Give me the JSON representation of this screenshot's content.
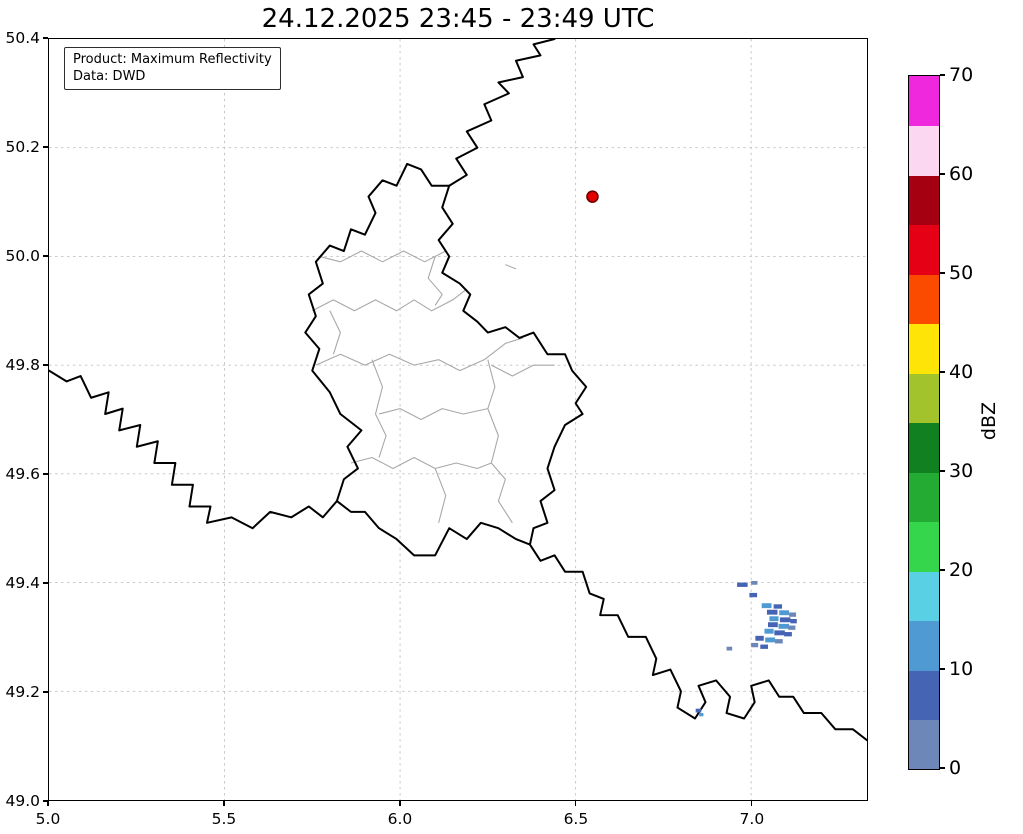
{
  "title": "24.12.2025 23:45 - 23:49 UTC",
  "info_box": {
    "product": "Product: Maximum Reflectivity",
    "source": "Data: DWD"
  },
  "axes": {
    "xlim": [
      5.0,
      7.33
    ],
    "ylim": [
      49.0,
      50.4
    ],
    "x_ticks": [
      {
        "value": 5.0,
        "label": "5.0"
      },
      {
        "value": 5.5,
        "label": "5.5"
      },
      {
        "value": 6.0,
        "label": "6.0"
      },
      {
        "value": 6.5,
        "label": "6.5"
      },
      {
        "value": 7.0,
        "label": "7.0"
      }
    ],
    "y_ticks": [
      {
        "value": 49.0,
        "label": "49.0"
      },
      {
        "value": 49.2,
        "label": "49.2"
      },
      {
        "value": 49.4,
        "label": "49.4"
      },
      {
        "value": 49.6,
        "label": "49.6"
      },
      {
        "value": 49.8,
        "label": "49.8"
      },
      {
        "value": 50.0,
        "label": "50.0"
      },
      {
        "value": 50.2,
        "label": "50.2"
      },
      {
        "value": 50.4,
        "label": "50.4"
      }
    ]
  },
  "colorbar": {
    "label": "dBZ",
    "min": 0,
    "max": 70,
    "ticks": [
      {
        "value": 0,
        "label": "0"
      },
      {
        "value": 10,
        "label": "10"
      },
      {
        "value": 20,
        "label": "20"
      },
      {
        "value": 30,
        "label": "30"
      },
      {
        "value": 40,
        "label": "40"
      },
      {
        "value": 50,
        "label": "50"
      },
      {
        "value": 60,
        "label": "60"
      },
      {
        "value": 70,
        "label": "70"
      }
    ],
    "segments": [
      {
        "from": 0,
        "to": 5,
        "color": "#6d87b8"
      },
      {
        "from": 5,
        "to": 10,
        "color": "#4565b4"
      },
      {
        "from": 10,
        "to": 15,
        "color": "#4f9ad2"
      },
      {
        "from": 15,
        "to": 20,
        "color": "#59d0e4"
      },
      {
        "from": 20,
        "to": 25,
        "color": "#35d54c"
      },
      {
        "from": 25,
        "to": 30,
        "color": "#23ab33"
      },
      {
        "from": 30,
        "to": 35,
        "color": "#118020"
      },
      {
        "from": 35,
        "to": 40,
        "color": "#a3c32c"
      },
      {
        "from": 40,
        "to": 45,
        "color": "#ffe408"
      },
      {
        "from": 45,
        "to": 50,
        "color": "#fb4b00"
      },
      {
        "from": 50,
        "to": 55,
        "color": "#e60015"
      },
      {
        "from": 55,
        "to": 60,
        "color": "#a50012"
      },
      {
        "from": 60,
        "to": 65,
        "color": "#fbd7f2"
      },
      {
        "from": 65,
        "to": 70,
        "color": "#ef28dd"
      }
    ]
  },
  "style": {
    "grid_color": "#c2c2c2",
    "country_border_color": "#000000",
    "admin_border_color": "#a8a8a8",
    "frame_color": "#000000"
  },
  "map": {
    "radar_marker": {
      "lon": 6.548,
      "lat": 50.11,
      "color": "#e50000",
      "edge_color": "#6b0000"
    },
    "country_borders": [
      [
        [
          6.02,
          50.17
        ],
        [
          6.06,
          50.16
        ],
        [
          6.09,
          50.13
        ],
        [
          6.14,
          50.13
        ],
        [
          6.12,
          50.09
        ],
        [
          6.15,
          50.06
        ],
        [
          6.11,
          50.03
        ],
        [
          6.14,
          50.0
        ],
        [
          6.12,
          49.97
        ],
        [
          6.17,
          49.95
        ],
        [
          6.2,
          49.93
        ],
        [
          6.18,
          49.9
        ],
        [
          6.22,
          49.88
        ],
        [
          6.25,
          49.86
        ],
        [
          6.3,
          49.87
        ],
        [
          6.34,
          49.85
        ],
        [
          6.38,
          49.86
        ],
        [
          6.42,
          49.82
        ],
        [
          6.47,
          49.82
        ],
        [
          6.49,
          49.79
        ],
        [
          6.53,
          49.76
        ],
        [
          6.5,
          49.73
        ],
        [
          6.52,
          49.71
        ],
        [
          6.47,
          49.69
        ],
        [
          6.44,
          49.65
        ],
        [
          6.42,
          49.61
        ],
        [
          6.44,
          49.57
        ],
        [
          6.4,
          49.55
        ],
        [
          6.42,
          49.51
        ],
        [
          6.38,
          49.5
        ],
        [
          6.37,
          49.47
        ],
        [
          6.33,
          49.48
        ],
        [
          6.28,
          49.5
        ],
        [
          6.23,
          49.51
        ],
        [
          6.19,
          49.48
        ],
        [
          6.14,
          49.5
        ],
        [
          6.1,
          49.45
        ],
        [
          6.04,
          49.45
        ],
        [
          5.99,
          49.48
        ],
        [
          5.94,
          49.5
        ],
        [
          5.9,
          49.53
        ],
        [
          5.86,
          49.53
        ],
        [
          5.82,
          49.55
        ],
        [
          5.84,
          49.59
        ],
        [
          5.88,
          49.61
        ],
        [
          5.85,
          49.65
        ],
        [
          5.89,
          49.68
        ],
        [
          5.83,
          49.71
        ],
        [
          5.8,
          49.75
        ],
        [
          5.75,
          49.79
        ],
        [
          5.77,
          49.83
        ],
        [
          5.73,
          49.86
        ],
        [
          5.76,
          49.89
        ],
        [
          5.74,
          49.93
        ],
        [
          5.78,
          49.95
        ],
        [
          5.76,
          49.99
        ],
        [
          5.8,
          50.02
        ],
        [
          5.84,
          50.01
        ],
        [
          5.86,
          50.05
        ],
        [
          5.9,
          50.04
        ],
        [
          5.93,
          50.08
        ],
        [
          5.91,
          50.11
        ],
        [
          5.95,
          50.14
        ],
        [
          5.99,
          50.13
        ],
        [
          6.02,
          50.17
        ]
      ],
      [
        [
          6.14,
          50.13
        ],
        [
          6.19,
          50.15
        ],
        [
          6.16,
          50.18
        ],
        [
          6.22,
          50.2
        ],
        [
          6.19,
          50.23
        ],
        [
          6.26,
          50.25
        ],
        [
          6.24,
          50.28
        ],
        [
          6.31,
          50.3
        ],
        [
          6.28,
          50.32
        ],
        [
          6.35,
          50.33
        ],
        [
          6.33,
          50.36
        ],
        [
          6.4,
          50.37
        ],
        [
          6.38,
          50.39
        ],
        [
          6.44,
          50.4
        ]
      ],
      [
        [
          5.0,
          49.79
        ],
        [
          5.05,
          49.77
        ],
        [
          5.09,
          49.78
        ],
        [
          5.12,
          49.74
        ],
        [
          5.17,
          49.75
        ],
        [
          5.16,
          49.71
        ],
        [
          5.21,
          49.72
        ],
        [
          5.2,
          49.68
        ],
        [
          5.26,
          49.69
        ],
        [
          5.25,
          49.65
        ],
        [
          5.31,
          49.66
        ],
        [
          5.3,
          49.62
        ],
        [
          5.36,
          49.62
        ],
        [
          5.35,
          49.58
        ],
        [
          5.41,
          49.58
        ],
        [
          5.4,
          49.54
        ],
        [
          5.46,
          49.54
        ],
        [
          5.45,
          49.51
        ],
        [
          5.52,
          49.52
        ],
        [
          5.58,
          49.5
        ],
        [
          5.63,
          49.53
        ],
        [
          5.69,
          49.52
        ],
        [
          5.74,
          49.54
        ],
        [
          5.78,
          49.52
        ],
        [
          5.82,
          49.55
        ]
      ],
      [
        [
          6.37,
          49.47
        ],
        [
          6.4,
          49.44
        ],
        [
          6.44,
          49.45
        ],
        [
          6.47,
          49.42
        ],
        [
          6.52,
          49.42
        ],
        [
          6.54,
          49.38
        ],
        [
          6.58,
          49.37
        ],
        [
          6.57,
          49.34
        ],
        [
          6.62,
          49.34
        ],
        [
          6.65,
          49.3
        ],
        [
          6.7,
          49.3
        ],
        [
          6.73,
          49.26
        ],
        [
          6.72,
          49.23
        ],
        [
          6.77,
          49.24
        ],
        [
          6.8,
          49.2
        ],
        [
          6.79,
          49.17
        ],
        [
          6.84,
          49.15
        ],
        [
          6.87,
          49.18
        ],
        [
          6.85,
          49.21
        ],
        [
          6.9,
          49.22
        ],
        [
          6.94,
          49.19
        ],
        [
          6.93,
          49.16
        ],
        [
          6.98,
          49.15
        ],
        [
          7.01,
          49.18
        ],
        [
          7.0,
          49.21
        ],
        [
          7.05,
          49.22
        ],
        [
          7.08,
          49.19
        ],
        [
          7.12,
          49.19
        ],
        [
          7.15,
          49.16
        ],
        [
          7.2,
          49.16
        ],
        [
          7.24,
          49.13
        ],
        [
          7.29,
          49.13
        ],
        [
          7.33,
          49.11
        ]
      ]
    ],
    "admin_borders": [
      [
        [
          5.77,
          50.0
        ],
        [
          5.83,
          49.99
        ],
        [
          5.89,
          50.01
        ],
        [
          5.95,
          49.99
        ],
        [
          6.01,
          50.01
        ],
        [
          6.07,
          49.99
        ],
        [
          6.13,
          50.01
        ]
      ],
      [
        [
          5.75,
          49.9
        ],
        [
          5.81,
          49.92
        ],
        [
          5.87,
          49.9
        ],
        [
          5.93,
          49.92
        ],
        [
          5.99,
          49.9
        ],
        [
          6.04,
          49.92
        ],
        [
          6.09,
          49.9
        ],
        [
          6.15,
          49.92
        ],
        [
          6.19,
          49.94
        ]
      ],
      [
        [
          6.1,
          50.0
        ],
        [
          6.08,
          49.96
        ],
        [
          6.12,
          49.93
        ],
        [
          6.1,
          49.91
        ]
      ],
      [
        [
          5.76,
          49.8
        ],
        [
          5.83,
          49.82
        ],
        [
          5.9,
          49.8
        ],
        [
          5.97,
          49.82
        ],
        [
          6.04,
          49.8
        ],
        [
          6.11,
          49.81
        ],
        [
          6.17,
          49.79
        ],
        [
          6.24,
          49.81
        ],
        [
          6.3,
          49.84
        ],
        [
          6.35,
          49.85
        ]
      ],
      [
        [
          5.92,
          49.81
        ],
        [
          5.95,
          49.76
        ],
        [
          5.93,
          49.71
        ],
        [
          5.96,
          49.67
        ],
        [
          5.94,
          49.63
        ]
      ],
      [
        [
          5.94,
          49.71
        ],
        [
          6.0,
          49.72
        ],
        [
          6.06,
          49.7
        ],
        [
          6.12,
          49.72
        ],
        [
          6.18,
          49.71
        ],
        [
          6.25,
          49.72
        ]
      ],
      [
        [
          6.25,
          49.81
        ],
        [
          6.27,
          49.76
        ],
        [
          6.25,
          49.72
        ],
        [
          6.28,
          49.67
        ],
        [
          6.26,
          49.62
        ]
      ],
      [
        [
          6.26,
          49.8
        ],
        [
          6.32,
          49.78
        ],
        [
          6.38,
          49.8
        ],
        [
          6.44,
          49.8
        ]
      ],
      [
        [
          5.86,
          49.62
        ],
        [
          5.92,
          49.63
        ],
        [
          5.98,
          49.61
        ],
        [
          6.04,
          49.63
        ],
        [
          6.1,
          49.61
        ]
      ],
      [
        [
          6.1,
          49.61
        ],
        [
          6.13,
          49.56
        ],
        [
          6.11,
          49.51
        ]
      ],
      [
        [
          6.26,
          49.62
        ],
        [
          6.3,
          49.59
        ],
        [
          6.28,
          49.55
        ],
        [
          6.32,
          49.51
        ]
      ],
      [
        [
          6.1,
          49.61
        ],
        [
          6.16,
          49.62
        ],
        [
          6.22,
          49.61
        ],
        [
          6.26,
          49.62
        ]
      ],
      [
        [
          5.8,
          49.9
        ],
        [
          5.83,
          49.86
        ],
        [
          5.81,
          49.82
        ]
      ],
      [
        [
          6.3,
          49.985
        ],
        [
          6.33,
          49.977
        ]
      ]
    ],
    "echoes": [
      {
        "lon": 6.96,
        "lat": 49.4,
        "w": 0.03,
        "h": 0.008,
        "color": "#4565b4"
      },
      {
        "lon": 7.0,
        "lat": 49.403,
        "w": 0.018,
        "h": 0.007,
        "color": "#6d87b8"
      },
      {
        "lon": 6.995,
        "lat": 49.381,
        "w": 0.022,
        "h": 0.008,
        "color": "#4565b4"
      },
      {
        "lon": 7.03,
        "lat": 49.362,
        "w": 0.028,
        "h": 0.009,
        "color": "#4f9ad2"
      },
      {
        "lon": 7.064,
        "lat": 49.36,
        "w": 0.024,
        "h": 0.008,
        "color": "#4565b4"
      },
      {
        "lon": 7.045,
        "lat": 49.35,
        "w": 0.03,
        "h": 0.009,
        "color": "#4565b4"
      },
      {
        "lon": 7.08,
        "lat": 49.349,
        "w": 0.028,
        "h": 0.009,
        "color": "#4f9ad2"
      },
      {
        "lon": 7.108,
        "lat": 49.345,
        "w": 0.02,
        "h": 0.008,
        "color": "#6d87b8"
      },
      {
        "lon": 7.052,
        "lat": 49.338,
        "w": 0.026,
        "h": 0.009,
        "color": "#4f9ad2"
      },
      {
        "lon": 7.082,
        "lat": 49.336,
        "w": 0.03,
        "h": 0.009,
        "color": "#4565b4"
      },
      {
        "lon": 7.112,
        "lat": 49.333,
        "w": 0.018,
        "h": 0.008,
        "color": "#4565b4"
      },
      {
        "lon": 7.048,
        "lat": 49.327,
        "w": 0.028,
        "h": 0.009,
        "color": "#4565b4"
      },
      {
        "lon": 7.078,
        "lat": 49.324,
        "w": 0.03,
        "h": 0.009,
        "color": "#4f9ad2"
      },
      {
        "lon": 7.106,
        "lat": 49.321,
        "w": 0.02,
        "h": 0.008,
        "color": "#6d87b8"
      },
      {
        "lon": 7.038,
        "lat": 49.315,
        "w": 0.026,
        "h": 0.009,
        "color": "#4f9ad2"
      },
      {
        "lon": 7.066,
        "lat": 49.312,
        "w": 0.03,
        "h": 0.009,
        "color": "#4565b4"
      },
      {
        "lon": 7.094,
        "lat": 49.309,
        "w": 0.022,
        "h": 0.008,
        "color": "#4565b4"
      },
      {
        "lon": 7.012,
        "lat": 49.302,
        "w": 0.024,
        "h": 0.009,
        "color": "#4565b4"
      },
      {
        "lon": 7.04,
        "lat": 49.299,
        "w": 0.028,
        "h": 0.009,
        "color": "#4f9ad2"
      },
      {
        "lon": 7.068,
        "lat": 49.296,
        "w": 0.022,
        "h": 0.008,
        "color": "#6d87b8"
      },
      {
        "lon": 7.0,
        "lat": 49.289,
        "w": 0.02,
        "h": 0.008,
        "color": "#6d87b8"
      },
      {
        "lon": 7.026,
        "lat": 49.286,
        "w": 0.022,
        "h": 0.008,
        "color": "#4565b4"
      },
      {
        "lon": 6.93,
        "lat": 49.282,
        "w": 0.016,
        "h": 0.007,
        "color": "#6d87b8"
      },
      {
        "lon": 6.842,
        "lat": 49.168,
        "w": 0.016,
        "h": 0.007,
        "color": "#4565b4"
      },
      {
        "lon": 6.852,
        "lat": 49.16,
        "w": 0.012,
        "h": 0.006,
        "color": "#4f9ad2"
      }
    ]
  }
}
